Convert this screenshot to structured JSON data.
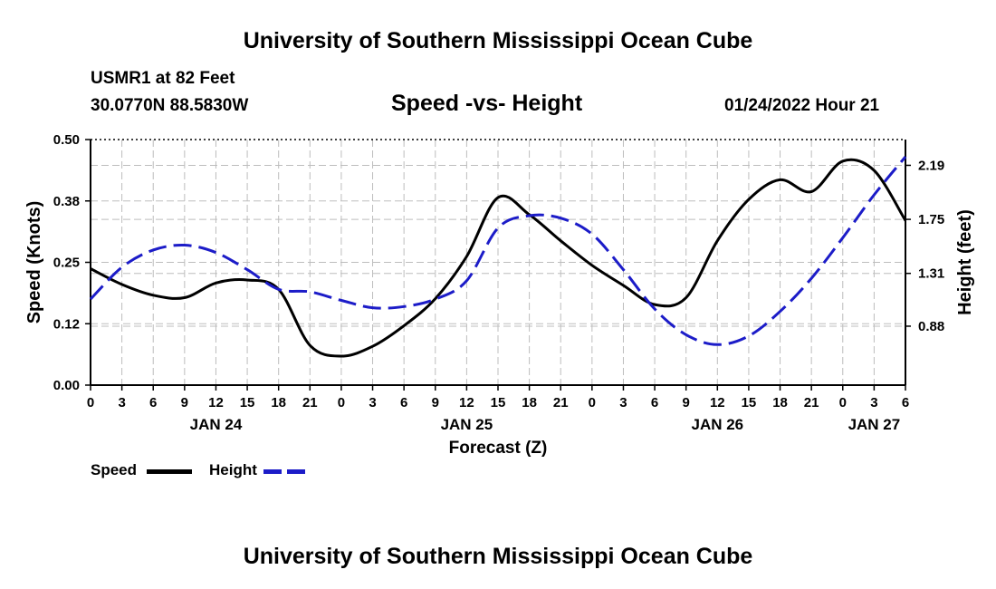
{
  "chart_data": {
    "type": "line",
    "title": "University of Southern Mississippi Ocean Cube",
    "subtitle": "Speed -vs- Height",
    "station": "USMR1 at 82 Feet",
    "coordinates": "30.0770N  88.5830W",
    "timestamp": "01/24/2022 Hour 21",
    "xlabel": "Forecast (Z)",
    "ylabel": "Speed (Knots)",
    "y2label": "Height (feet)",
    "x_range_hours": [
      0,
      78
    ],
    "x_ticks": [
      {
        "h": 0,
        "label": "0"
      },
      {
        "h": 3,
        "label": "3"
      },
      {
        "h": 6,
        "label": "6"
      },
      {
        "h": 9,
        "label": "9"
      },
      {
        "h": 12,
        "label": "12"
      },
      {
        "h": 15,
        "label": "15"
      },
      {
        "h": 18,
        "label": "18"
      },
      {
        "h": 21,
        "label": "21"
      },
      {
        "h": 24,
        "label": "0"
      },
      {
        "h": 27,
        "label": "3"
      },
      {
        "h": 30,
        "label": "6"
      },
      {
        "h": 33,
        "label": "9"
      },
      {
        "h": 36,
        "label": "12"
      },
      {
        "h": 39,
        "label": "15"
      },
      {
        "h": 42,
        "label": "18"
      },
      {
        "h": 45,
        "label": "21"
      },
      {
        "h": 48,
        "label": "0"
      },
      {
        "h": 51,
        "label": "3"
      },
      {
        "h": 54,
        "label": "6"
      },
      {
        "h": 57,
        "label": "9"
      },
      {
        "h": 60,
        "label": "12"
      },
      {
        "h": 63,
        "label": "15"
      },
      {
        "h": 66,
        "label": "18"
      },
      {
        "h": 69,
        "label": "21"
      },
      {
        "h": 72,
        "label": "0"
      },
      {
        "h": 75,
        "label": "3"
      },
      {
        "h": 78,
        "label": "6"
      }
    ],
    "date_labels": [
      {
        "h": 12,
        "label": "JAN 24"
      },
      {
        "h": 36,
        "label": "JAN 25"
      },
      {
        "h": 60,
        "label": "JAN 26"
      },
      {
        "h": 75,
        "label": "JAN 27"
      }
    ],
    "ylim": [
      0,
      0.5
    ],
    "y_ticks": [
      {
        "v": 0.0,
        "label": "0.00"
      },
      {
        "v": 0.125,
        "label": "0.12"
      },
      {
        "v": 0.25,
        "label": "0.25"
      },
      {
        "v": 0.375,
        "label": "0.38"
      },
      {
        "v": 0.5,
        "label": "0.50"
      }
    ],
    "y2lim": [
      0.4,
      2.4
    ],
    "y2_ticks": [
      {
        "v": 0.88,
        "label": "0.88"
      },
      {
        "v": 1.31,
        "label": "1.31"
      },
      {
        "v": 1.75,
        "label": "1.75"
      },
      {
        "v": 2.19,
        "label": "2.19"
      }
    ],
    "grid": true,
    "series": [
      {
        "name": "Speed",
        "axis": "left",
        "color": "#000000",
        "dash": "solid",
        "x": [
          0,
          3,
          6,
          9,
          12,
          15,
          18,
          21,
          24,
          27,
          30,
          33,
          36,
          39,
          42,
          45,
          48,
          51,
          54,
          57,
          60,
          63,
          66,
          69,
          72,
          75,
          78
        ],
        "values": [
          0.237,
          0.205,
          0.183,
          0.178,
          0.208,
          0.214,
          0.195,
          0.081,
          0.059,
          0.079,
          0.121,
          0.176,
          0.262,
          0.382,
          0.347,
          0.294,
          0.244,
          0.203,
          0.164,
          0.178,
          0.294,
          0.378,
          0.418,
          0.394,
          0.456,
          0.437,
          0.335
        ]
      },
      {
        "name": "Height",
        "axis": "right",
        "color": "#1c1cc8",
        "dash": "dashed",
        "x": [
          0,
          3,
          6,
          9,
          12,
          15,
          18,
          21,
          24,
          27,
          30,
          33,
          36,
          39,
          42,
          45,
          48,
          51,
          54,
          57,
          60,
          63,
          66,
          69,
          72,
          75,
          78
        ],
        "values": [
          1.1,
          1.36,
          1.5,
          1.54,
          1.48,
          1.34,
          1.18,
          1.16,
          1.09,
          1.03,
          1.04,
          1.1,
          1.25,
          1.68,
          1.78,
          1.76,
          1.63,
          1.34,
          1.02,
          0.81,
          0.73,
          0.8,
          1.0,
          1.27,
          1.6,
          1.95,
          2.26
        ]
      }
    ]
  },
  "legend": {
    "speed_label": "Speed",
    "height_label": "Height",
    "speed_color": "#000000",
    "height_color": "#1c1cc8"
  },
  "footer_title": "University of Southern Mississippi Ocean Cube"
}
